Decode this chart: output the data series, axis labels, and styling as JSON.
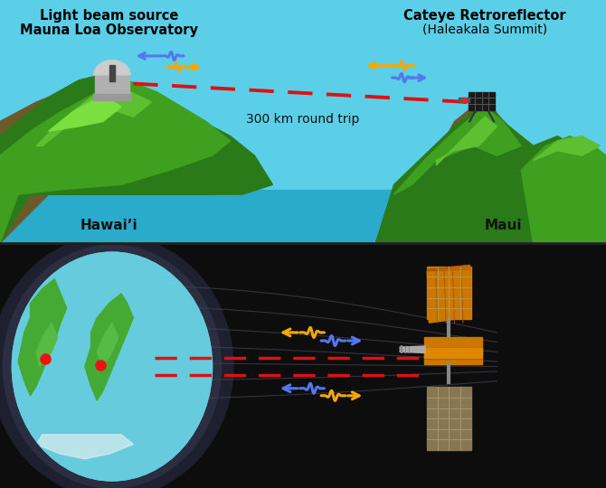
{
  "top_bg": "#5CCFE8",
  "water_color": "#2AABCC",
  "bottom_bg": "#0D0D0D",
  "mountain_brown1": "#6B5A2A",
  "mountain_brown2": "#8B7040",
  "mountain_green1": "#2A7A1A",
  "mountain_green2": "#3FA020",
  "mountain_green3": "#5DC030",
  "mountain_green4": "#7AE040",
  "dashed_color": "#DD1111",
  "arrow_blue": "#5577EE",
  "arrow_orange": "#F5A800",
  "red_dot": "#EE1111",
  "sat_orange_top": "#D4840A",
  "sat_orange_body": "#CC7700",
  "sat_gray": "#8899AA",
  "sat_panel_line": "#BB9933",
  "earth_ocean": "#66CCDD",
  "earth_land": "#44AA33",
  "earth_land2": "#55BB44",
  "earth_dark": "#1A2030",
  "orbit_line": "#555566",
  "label_font": 10,
  "hawaii_label": "Hawaiʼi",
  "maui_label": "Maui",
  "source_line1": "Light beam source",
  "source_line2": "Mauna Loa Observatory",
  "reflector_line1": "Cateye Retroreflector",
  "reflector_line2": "(Haleakala Summit)",
  "distance_text": "300 km round trip"
}
